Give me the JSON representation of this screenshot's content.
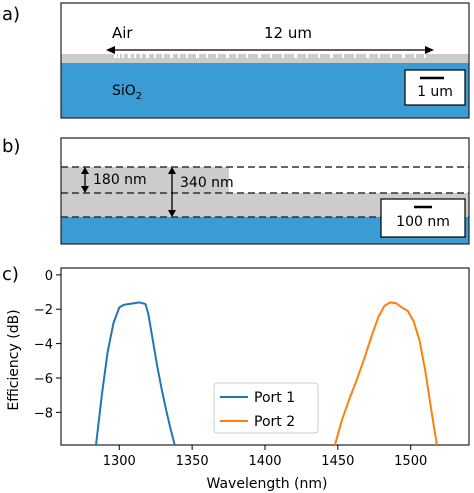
{
  "panel_a": {
    "label": "a)",
    "air_label": "Air",
    "width_label": "12 um",
    "substrate_label": "SiO",
    "substrate_subscript": "2",
    "scale_bar_label": "1 um",
    "colors": {
      "substrate": "#3a9bd5",
      "device": "#cccccc",
      "background": "#ffffff"
    }
  },
  "panel_b": {
    "label": "b)",
    "thickness_etch_label": "180 nm",
    "thickness_total_label": "340 nm",
    "scale_bar_label": "100 nm",
    "colors": {
      "substrate": "#3a9bd5",
      "device": "#cccccc"
    }
  },
  "panel_c": {
    "label": "c)",
    "chart_data": {
      "type": "line",
      "xlabel": "Wavelength (nm)",
      "ylabel": "Efficiency (dB)",
      "xlim": [
        1260,
        1540
      ],
      "ylim": [
        -9.9,
        0.4
      ],
      "xticks": [
        1300,
        1350,
        1400,
        1450,
        1500
      ],
      "yticks": [
        0,
        -2,
        -4,
        -6,
        -8
      ],
      "legend_placement": "lower-center",
      "series": [
        {
          "name": "Port 1",
          "color": "#1f77b4",
          "x": [
            1284,
            1288,
            1292,
            1296,
            1300,
            1303,
            1306,
            1310,
            1314,
            1318,
            1320,
            1323,
            1326,
            1329,
            1332,
            1335,
            1338
          ],
          "y": [
            -9.9,
            -7.0,
            -4.5,
            -2.8,
            -1.9,
            -1.75,
            -1.7,
            -1.65,
            -1.6,
            -1.7,
            -2.3,
            -3.8,
            -5.3,
            -6.6,
            -7.8,
            -8.9,
            -9.9
          ]
        },
        {
          "name": "Port 2",
          "color": "#ff7f0e",
          "x": [
            1448,
            1453,
            1458,
            1463,
            1468,
            1473,
            1478,
            1482,
            1486,
            1490,
            1494,
            1498,
            1502,
            1506,
            1510,
            1514,
            1518
          ],
          "y": [
            -9.9,
            -8.4,
            -7.2,
            -6.1,
            -4.9,
            -3.6,
            -2.4,
            -1.8,
            -1.6,
            -1.65,
            -1.9,
            -2.1,
            -2.7,
            -3.8,
            -5.6,
            -7.8,
            -9.9
          ]
        }
      ]
    }
  }
}
